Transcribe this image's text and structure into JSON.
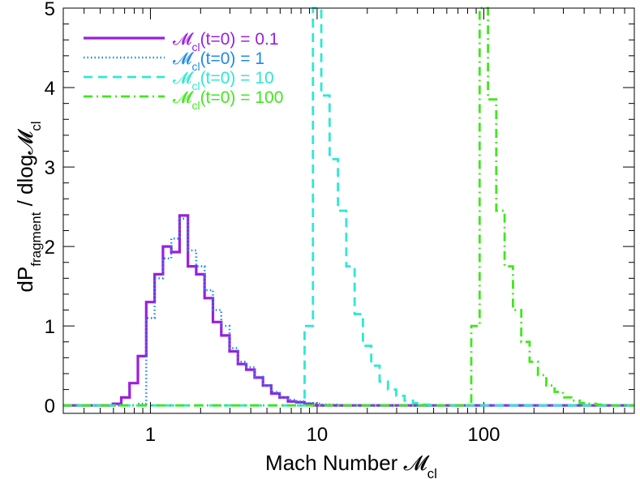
{
  "chart_data": {
    "type": "line",
    "style": "step-histogram",
    "xscale": "log",
    "xlim": [
      0.3,
      800
    ],
    "ylim": [
      -0.1,
      5
    ],
    "x_ticks": [
      1,
      10,
      100
    ],
    "x_tick_labels": [
      "1",
      "10",
      "100"
    ],
    "y_ticks": [
      0,
      1,
      2,
      3,
      4,
      5
    ],
    "y_tick_labels": [
      "0",
      "1",
      "2",
      "3",
      "4",
      "5"
    ],
    "xlabel": "Mach Number 𝓜cl",
    "ylabel": "dPfragment / dlog𝓜cl",
    "bin_width_dex": 0.05,
    "legend_position": "top-left",
    "series": [
      {
        "name": "𝓜cl(t=0) = 0.1",
        "color": "#9a1fe0",
        "dash": "solid",
        "x": [
          0.355,
          0.398,
          0.447,
          0.501,
          0.562,
          0.631,
          0.708,
          0.794,
          0.891,
          1.0,
          1.122,
          1.259,
          1.413,
          1.585,
          1.778,
          1.995,
          2.239,
          2.512,
          2.818,
          3.162,
          3.548,
          3.981,
          4.467,
          5.012,
          5.623,
          6.31,
          7.079,
          7.943,
          8.913,
          10.0,
          11.22,
          12.59,
          14.13,
          15.85
        ],
        "y": [
          0.0,
          0.0,
          0.0,
          0.0,
          0.0,
          0.02,
          0.1,
          0.28,
          0.62,
          1.3,
          1.65,
          2.0,
          1.93,
          2.39,
          1.75,
          1.65,
          1.35,
          1.05,
          0.88,
          0.68,
          0.52,
          0.45,
          0.35,
          0.25,
          0.15,
          0.1,
          0.05,
          0.04,
          0.02,
          0.0,
          0.0,
          0.0,
          0.0,
          0.0
        ]
      },
      {
        "name": "𝓜cl(t=0) = 1",
        "color": "#1f8ae6",
        "dash": "dotted",
        "x": [
          0.708,
          0.794,
          0.891,
          1.0,
          1.122,
          1.259,
          1.413,
          1.585,
          1.778,
          1.995,
          2.239,
          2.512,
          2.818,
          3.162,
          3.548,
          3.981,
          4.467,
          5.012,
          5.623,
          6.31,
          7.079,
          7.943,
          8.913,
          10.0,
          11.22,
          12.59,
          14.13,
          15.85,
          17.78,
          19.95
        ],
        "y": [
          0.0,
          0.0,
          0.02,
          1.1,
          1.6,
          1.85,
          2.1,
          2.35,
          1.95,
          1.75,
          1.45,
          1.2,
          1.0,
          0.72,
          0.55,
          0.48,
          0.36,
          0.25,
          0.17,
          0.1,
          0.07,
          0.05,
          0.03,
          0.02,
          0.01,
          0.01,
          0.0,
          0.0,
          0.0,
          0.0
        ]
      },
      {
        "name": "𝓜cl(t=0) = 10",
        "color": "#2ee8d2",
        "dash": "dashed",
        "x": [
          7.943,
          8.913,
          10.0,
          11.22,
          12.59,
          14.13,
          15.85,
          17.78,
          19.95,
          22.39,
          25.12,
          28.18,
          31.62,
          35.48,
          39.81,
          44.67,
          50.12,
          56.23,
          63.1,
          70.79
        ],
        "y": [
          0.0,
          1.0,
          5.1,
          3.9,
          3.1,
          2.45,
          1.75,
          1.15,
          0.75,
          0.5,
          0.3,
          0.2,
          0.12,
          0.06,
          0.03,
          0.01,
          0.0,
          0.0,
          0.0,
          0.0
        ]
      },
      {
        "name": "𝓜cl(t=0) = 100",
        "color": "#3fe81c",
        "dash": "dashdot",
        "x": [
          79.43,
          89.13,
          100.0,
          112.2,
          125.9,
          141.3,
          158.5,
          177.8,
          199.5,
          223.9,
          251.2,
          281.8,
          316.2,
          354.8,
          398.1,
          446.7,
          501.2,
          562.3,
          631.0,
          707.9
        ],
        "y": [
          0.0,
          1.0,
          5.1,
          3.85,
          2.45,
          1.75,
          1.2,
          0.8,
          0.55,
          0.38,
          0.25,
          0.17,
          0.1,
          0.06,
          0.03,
          0.02,
          0.01,
          0.0,
          0.0,
          0.0
        ]
      }
    ]
  }
}
